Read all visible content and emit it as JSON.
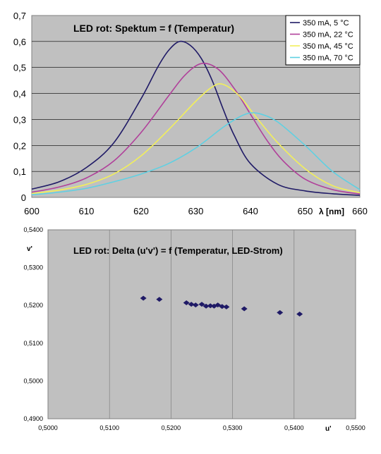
{
  "chart_data": [
    {
      "type": "line",
      "title": "LED rot: Spektum = f (Temperatur)",
      "xlabel": "λ [nm]",
      "ylabel": "",
      "xlim": [
        600,
        660
      ],
      "ylim": [
        0,
        0.7
      ],
      "x_ticks": [
        "600",
        "610",
        "620",
        "630",
        "640",
        "650",
        "660"
      ],
      "x_tick_values": [
        600,
        610,
        620,
        630,
        640,
        650,
        660
      ],
      "y_ticks": [
        "0",
        "0,1",
        "0,2",
        "0,3",
        "0,4",
        "0,5",
        "0,6",
        "0,7"
      ],
      "y_tick_values": [
        0,
        0.1,
        0.2,
        0.3,
        0.4,
        0.5,
        0.6,
        0.7
      ],
      "grid": "horizontal",
      "legend_position": "top-right",
      "plot_background": "#c0c0c0",
      "series": [
        {
          "name": "350 mA,   5 °C",
          "color": "#1f1a66",
          "x": [
            600,
            605,
            610,
            615,
            620,
            623,
            625,
            627,
            629,
            631,
            633,
            635,
            637,
            640,
            645,
            650,
            655,
            660
          ],
          "y": [
            0.032,
            0.06,
            0.115,
            0.21,
            0.38,
            0.5,
            0.565,
            0.6,
            0.585,
            0.535,
            0.45,
            0.34,
            0.24,
            0.13,
            0.05,
            0.025,
            0.014,
            0.008
          ]
        },
        {
          "name": "350 mA, 22 °C",
          "color": "#b0409a",
          "x": [
            600,
            605,
            610,
            615,
            620,
            625,
            628,
            631,
            634,
            637,
            640,
            643,
            646,
            650,
            655,
            660
          ],
          "y": [
            0.02,
            0.04,
            0.075,
            0.14,
            0.25,
            0.39,
            0.47,
            0.515,
            0.495,
            0.42,
            0.32,
            0.22,
            0.14,
            0.07,
            0.03,
            0.013
          ]
        },
        {
          "name": "350 mA, 45 °C",
          "color": "#f2ef5a",
          "x": [
            600,
            605,
            610,
            615,
            620,
            625,
            630,
            633,
            635,
            638,
            641,
            645,
            650,
            655,
            660
          ],
          "y": [
            0.015,
            0.028,
            0.05,
            0.09,
            0.16,
            0.26,
            0.37,
            0.425,
            0.435,
            0.39,
            0.31,
            0.21,
            0.11,
            0.045,
            0.018
          ]
        },
        {
          "name": "350 mA, 70 °C",
          "color": "#5fd0e2",
          "x": [
            600,
            605,
            610,
            615,
            620,
            625,
            630,
            635,
            638,
            640,
            642,
            645,
            650,
            655,
            660
          ],
          "y": [
            0.01,
            0.02,
            0.035,
            0.06,
            0.09,
            0.13,
            0.19,
            0.27,
            0.31,
            0.325,
            0.32,
            0.29,
            0.2,
            0.1,
            0.03
          ]
        }
      ]
    },
    {
      "type": "scatter",
      "title": "LED rot: Delta (u'v') = f (Temperatur, LED-Strom)",
      "xlabel": "u'",
      "ylabel": "v'",
      "xlim": [
        0.5,
        0.55
      ],
      "ylim": [
        0.49,
        0.54
      ],
      "x_ticks": [
        "0,5000",
        "0,5100",
        "0,5200",
        "0,5300",
        "0,5400",
        "0,5500"
      ],
      "x_tick_values": [
        0.5,
        0.51,
        0.52,
        0.53,
        0.54,
        0.55
      ],
      "y_ticks": [
        "0,4900",
        "0,5000",
        "0,5100",
        "0,5200",
        "0,5300",
        "0,5400"
      ],
      "y_tick_values": [
        0.49,
        0.5,
        0.51,
        0.52,
        0.53,
        0.54
      ],
      "grid": "vertical",
      "plot_background": "#c0c0c0",
      "marker_color": "#1f1a66",
      "points": [
        [
          0.5155,
          0.5219
        ],
        [
          0.5181,
          0.5216
        ],
        [
          0.5225,
          0.5207
        ],
        [
          0.5233,
          0.5203
        ],
        [
          0.524,
          0.5201
        ],
        [
          0.525,
          0.5203
        ],
        [
          0.5257,
          0.5198
        ],
        [
          0.5264,
          0.5199
        ],
        [
          0.527,
          0.5198
        ],
        [
          0.5276,
          0.5201
        ],
        [
          0.5283,
          0.5197
        ],
        [
          0.529,
          0.5196
        ],
        [
          0.5319,
          0.5191
        ],
        [
          0.5377,
          0.5181
        ],
        [
          0.5409,
          0.5177
        ]
      ]
    }
  ]
}
